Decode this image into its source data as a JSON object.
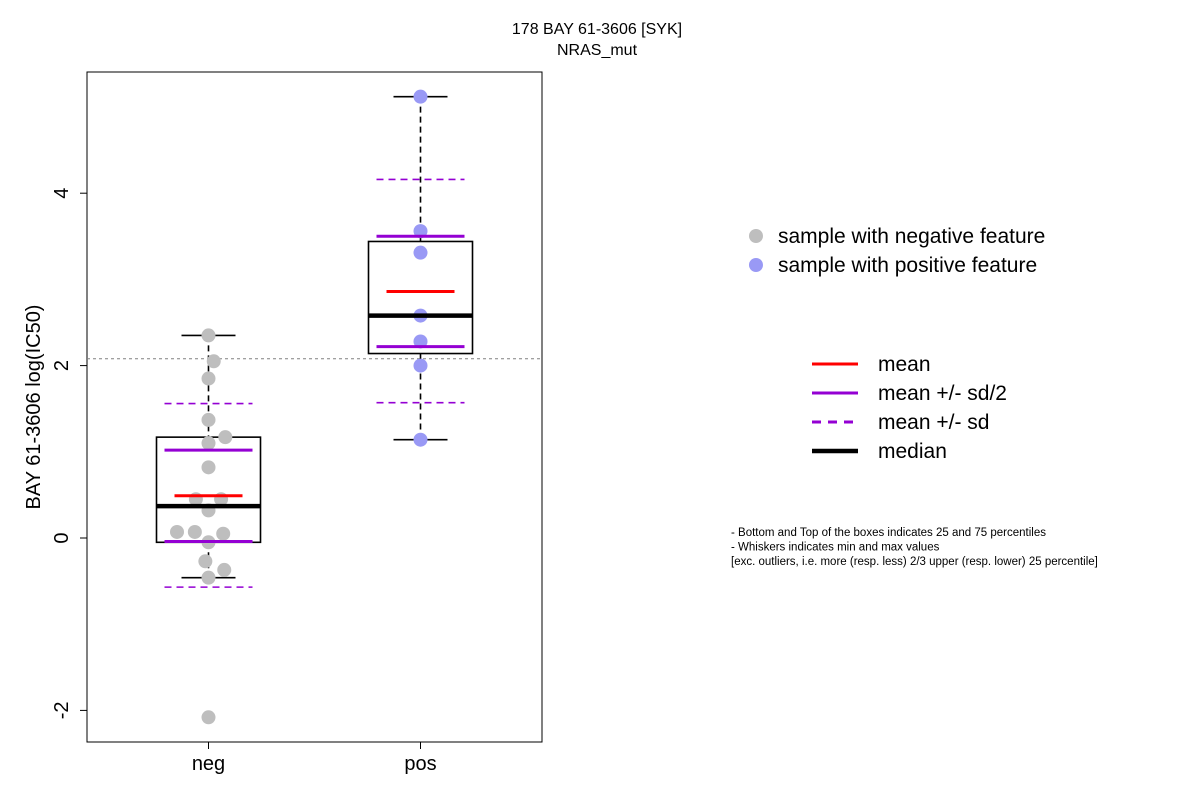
{
  "chart_data": {
    "type": "box",
    "title": "178 BAY 61-3606 [SYK]",
    "subtitle": "NRAS_mut",
    "ylabel": "BAY 61-3606 log(IC50)",
    "xlabel": "",
    "categories": [
      "neg",
      "pos"
    ],
    "ylim": [
      -2.3,
      5.5
    ],
    "yticks": [
      -2,
      0,
      2,
      4
    ],
    "reference_line": 2.08,
    "groups": [
      {
        "name": "neg",
        "color": "#BEBEBE",
        "points": [
          2.35,
          2.05,
          1.85,
          1.37,
          1.17,
          1.1,
          0.82,
          0.45,
          0.45,
          0.32,
          0.07,
          0.07,
          0.05,
          -0.05,
          -0.27,
          -0.37,
          -0.46,
          -2.08
        ],
        "jitter": [
          0,
          0.05,
          0,
          0,
          0.16,
          0,
          0,
          -0.12,
          0.12,
          0,
          -0.3,
          -0.13,
          0.14,
          0,
          -0.03,
          0.15,
          0,
          0
        ],
        "min": -0.46,
        "q1": -0.05,
        "median": 0.37,
        "q3": 1.17,
        "max": 2.35,
        "mean": 0.49,
        "mean_minus_half_sd": -0.04,
        "mean_plus_half_sd": 1.02,
        "mean_minus_sd": -0.57,
        "mean_plus_sd": 1.56
      },
      {
        "name": "pos",
        "color": "#9999F5",
        "points": [
          5.12,
          3.56,
          3.31,
          2.58,
          2.28,
          2.0,
          1.14
        ],
        "jitter": [
          0,
          0,
          0,
          0,
          0,
          0,
          0
        ],
        "min": 1.14,
        "q1": 2.14,
        "median": 2.58,
        "q3": 3.44,
        "max": 5.12,
        "mean": 2.86,
        "mean_minus_half_sd": 2.22,
        "mean_plus_half_sd": 3.5,
        "mean_minus_sd": 1.57,
        "mean_plus_sd": 4.16
      }
    ]
  },
  "legend": {
    "points": [
      {
        "label": "sample with negative feature",
        "color": "#BEBEBE"
      },
      {
        "label": "sample with positive feature",
        "color": "#9999F5"
      }
    ],
    "lines": [
      {
        "label": "mean",
        "color": "#FF0000",
        "style": "solid-thin"
      },
      {
        "label": "mean +/- sd/2",
        "color": "#9400D3",
        "style": "solid-thin"
      },
      {
        "label": "mean +/- sd",
        "color": "#9400D3",
        "style": "dashed"
      },
      {
        "label": "median",
        "color": "#000000",
        "style": "solid-thick"
      }
    ]
  },
  "notes": [
    "- Bottom and Top of the boxes indicates 25 and 75 percentiles",
    "- Whiskers indicates min and max values",
    "[exc. outliers, i.e. more (resp. less) 2/3 upper (resp. lower) 25 percentile]"
  ]
}
